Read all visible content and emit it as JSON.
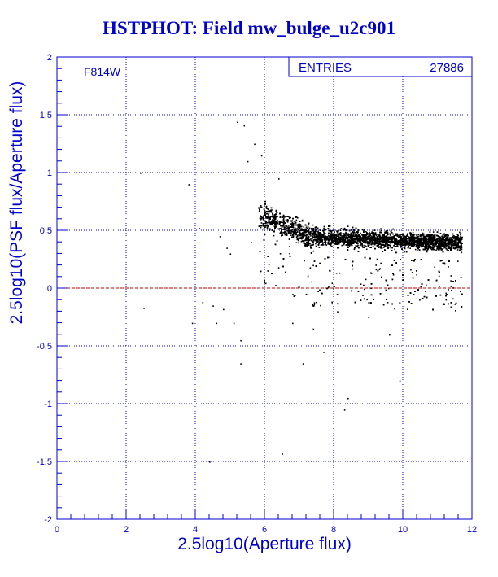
{
  "title": "HSTPHOT: Field mw_bulge_u2c901",
  "chart_data": {
    "type": "scatter",
    "title": "HSTPHOT: Field mw_bulge_u2c901",
    "filter_label": "F814W",
    "stats": {
      "label": "ENTRIES",
      "value": "27886"
    },
    "xlabel": "2.5log10(Aperture flux)",
    "ylabel": "2.5log10(PSF flux/Aperture flux)",
    "xlim": [
      0,
      12
    ],
    "ylim": [
      -2,
      2
    ],
    "xticks": [
      "0",
      "2",
      "4",
      "6",
      "8",
      "10",
      "12"
    ],
    "yticks": [
      "-2",
      "-1.5",
      "-1",
      "-0.5",
      "0",
      "0.5",
      "1",
      "1.5",
      "2"
    ],
    "grid": true,
    "reference_line": {
      "y": 0,
      "color": "#cc0000"
    },
    "colors": {
      "axes": "#0000cc",
      "points": "#000000",
      "title": "#0000cc"
    },
    "points": [
      [
        2.4,
        1.0
      ],
      [
        2.5,
        -0.17
      ],
      [
        3.8,
        0.9
      ],
      [
        3.9,
        -0.3
      ],
      [
        4.1,
        0.52
      ],
      [
        4.2,
        -0.12
      ],
      [
        4.4,
        -1.5
      ],
      [
        4.5,
        -0.15
      ],
      [
        4.6,
        -0.3
      ],
      [
        4.7,
        0.45
      ],
      [
        4.8,
        -0.18
      ],
      [
        5.1,
        -0.3
      ],
      [
        5.2,
        1.44
      ],
      [
        5.4,
        1.41
      ],
      [
        5.3,
        -0.45
      ],
      [
        5.3,
        -0.65
      ],
      [
        5.5,
        1.1
      ],
      [
        5.7,
        1.25
      ],
      [
        5.9,
        1.15
      ],
      [
        6.1,
        1.0
      ],
      [
        6.4,
        0.95
      ],
      [
        6.5,
        -1.43
      ],
      [
        7.1,
        -0.65
      ],
      [
        7.7,
        -0.55
      ],
      [
        8.3,
        -1.05
      ],
      [
        8.4,
        -0.95
      ],
      [
        9.0,
        -0.25
      ],
      [
        9.6,
        -0.4
      ],
      [
        9.9,
        -0.8
      ],
      [
        6.8,
        -0.3
      ],
      [
        7.4,
        -0.35
      ],
      [
        8.1,
        -0.2
      ],
      [
        10.3,
        -0.05
      ],
      [
        4.9,
        0.35
      ],
      [
        5.0,
        0.3
      ],
      [
        5.6,
        0.4
      ]
    ]
  }
}
